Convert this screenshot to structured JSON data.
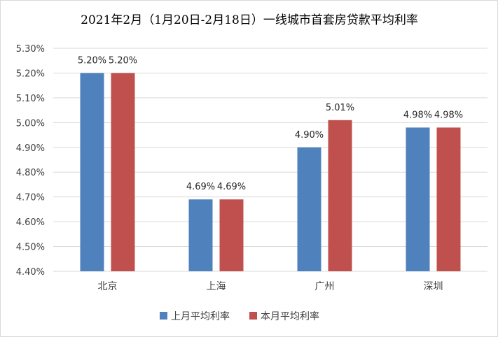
{
  "chart_data": {
    "type": "bar",
    "title": "2021年2月（1月20日-2月18日）一线城市首套房贷款平均利率",
    "categories": [
      "北京",
      "上海",
      "广州",
      "深圳"
    ],
    "series": [
      {
        "name": "上月平均利率",
        "values": [
          5.2,
          4.69,
          4.9,
          4.98
        ],
        "labels": [
          "5.20%",
          "4.69%",
          "4.90%",
          "4.98%"
        ],
        "color": "#4F81BD"
      },
      {
        "name": "本月平均利率",
        "values": [
          5.2,
          4.69,
          5.01,
          4.98
        ],
        "labels": [
          "5.20%",
          "4.69%",
          "5.01%",
          "4.98%"
        ],
        "color": "#C0504D"
      }
    ],
    "ylim": [
      4.4,
      5.3
    ],
    "yticks": [
      {
        "value": 4.4,
        "label": "4.40%"
      },
      {
        "value": 4.5,
        "label": "4.50%"
      },
      {
        "value": 4.6,
        "label": "4.60%"
      },
      {
        "value": 4.7,
        "label": "4.70%"
      },
      {
        "value": 4.8,
        "label": "4.80%"
      },
      {
        "value": 4.9,
        "label": "4.90%"
      },
      {
        "value": 5.0,
        "label": "5.00%"
      },
      {
        "value": 5.1,
        "label": "5.10%"
      },
      {
        "value": 5.2,
        "label": "5.20%"
      },
      {
        "value": 5.3,
        "label": "5.30%"
      }
    ],
    "xlabel": "",
    "ylabel": "",
    "grid": true,
    "legend_position": "bottom"
  }
}
